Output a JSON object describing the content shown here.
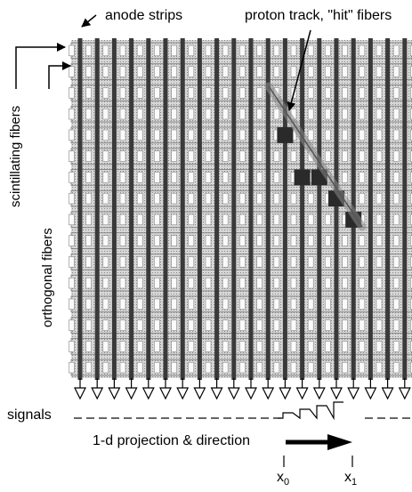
{
  "labels": {
    "anode_strips": "anode strips",
    "proton_track": "proton track, \"hit\" fibers",
    "scintillating_fibers": "scintillating fibers",
    "orthogonal_fibers": "orthogonal fibers",
    "signals": "signals",
    "projection": "1-d projection & direction",
    "x0": "x",
    "x0_sub": "0",
    "x1": "x",
    "x1_sub": "1"
  },
  "diagram": {
    "strip_count": 20,
    "fiber_row_count": 16,
    "hit_fibers": [
      {
        "column": 12,
        "row": 4
      },
      {
        "column": 13,
        "row": 6
      },
      {
        "column": 14,
        "row": 6
      },
      {
        "column": 15,
        "row": 7
      },
      {
        "column": 16,
        "row": 8
      }
    ],
    "signal_steps": 4,
    "colors": {
      "background": "#ffffff",
      "strip": "#3a3a3a",
      "fiber_fill": "#bdbdbd",
      "hit": "#2a2a2a",
      "ink": "#000000"
    }
  }
}
